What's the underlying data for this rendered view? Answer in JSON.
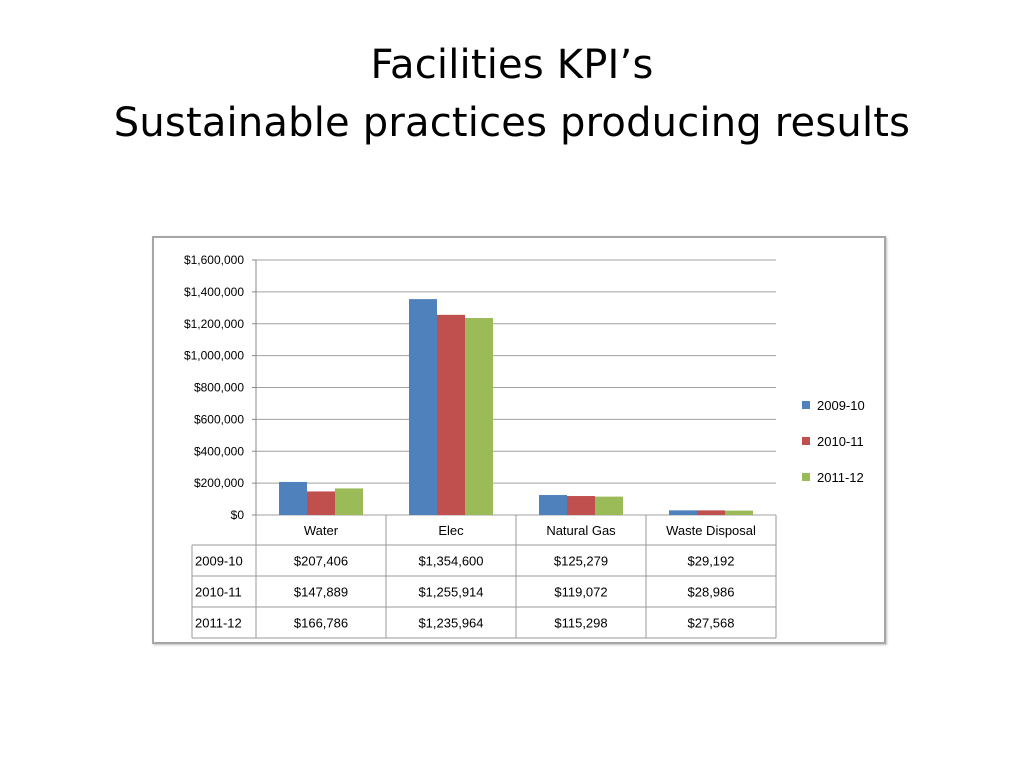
{
  "slide": {
    "title_line1": "Facilities KPI’s",
    "title_line2": "Sustainable practices producing results"
  },
  "chart_data": {
    "type": "bar",
    "categories": [
      "Water",
      "Elec",
      "Natural  Gas",
      "Waste Disposal"
    ],
    "series": [
      {
        "name": "2009-10",
        "color": "#4f81bd",
        "values": [
          207406,
          1354600,
          125279,
          29192
        ],
        "labels": [
          "$207,406",
          "$1,354,600",
          "$125,279",
          "$29,192"
        ]
      },
      {
        "name": "2010-11",
        "color": "#c0504d",
        "values": [
          147889,
          1255914,
          119072,
          28986
        ],
        "labels": [
          "$147,889",
          "$1,255,914",
          "$119,072",
          "$28,986"
        ]
      },
      {
        "name": "2011-12",
        "color": "#9bbb59",
        "values": [
          166786,
          1235964,
          115298,
          27568
        ],
        "labels": [
          "$166,786",
          "$1,235,964",
          "$115,298",
          "$27,568"
        ]
      }
    ],
    "ylim": [
      0,
      1600000
    ],
    "yticks": [
      0,
      200000,
      400000,
      600000,
      800000,
      1000000,
      1200000,
      1400000,
      1600000
    ],
    "ytick_labels": [
      "$0",
      "$200,000",
      "$400,000",
      "$600,000",
      "$800,000",
      "$1,000,000",
      "$1,200,000",
      "$1,400,000",
      "$1,600,000"
    ],
    "grid": true,
    "legend": "right",
    "data_table": true
  }
}
